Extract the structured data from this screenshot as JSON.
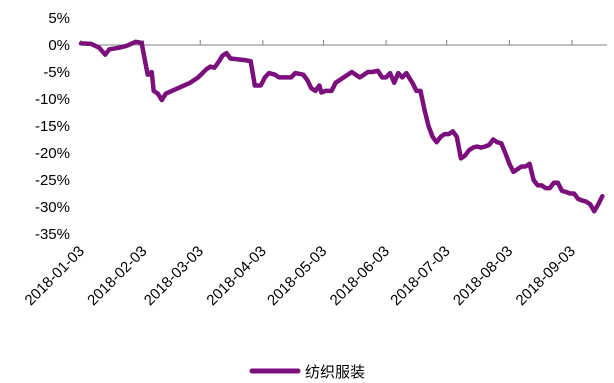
{
  "chart_data": {
    "type": "line",
    "title": "",
    "xlabel": "",
    "ylabel": "",
    "ylim": [
      -35,
      5
    ],
    "y_ticks": [
      "5%",
      "0%",
      "-5%",
      "-10%",
      "-15%",
      "-20%",
      "-25%",
      "-30%",
      "-35%"
    ],
    "x_ticks": [
      "2018-01-03",
      "2018-02-03",
      "2018-03-03",
      "2018-04-03",
      "2018-05-03",
      "2018-06-03",
      "2018-07-03",
      "2018-08-03",
      "2018-09-03"
    ],
    "grid": false,
    "legend_position": "bottom-center",
    "series": [
      {
        "name": "纺织服装",
        "color": "#7B0F7B",
        "points": [
          [
            "2018-01-03",
            0.3
          ],
          [
            "2018-01-08",
            0.2
          ],
          [
            "2018-01-12",
            -0.5
          ],
          [
            "2018-01-15",
            -1.8
          ],
          [
            "2018-01-17",
            -0.8
          ],
          [
            "2018-01-22",
            -0.5
          ],
          [
            "2018-01-26",
            -0.1
          ],
          [
            "2018-01-30",
            0.6
          ],
          [
            "2018-02-02",
            0.4
          ],
          [
            "2018-02-05",
            -5.5
          ],
          [
            "2018-02-07",
            -5.0
          ],
          [
            "2018-02-08",
            -8.5
          ],
          [
            "2018-02-10",
            -9.0
          ],
          [
            "2018-02-12",
            -10.2
          ],
          [
            "2018-02-14",
            -9.0
          ],
          [
            "2018-02-20",
            -8.0
          ],
          [
            "2018-02-26",
            -7.0
          ],
          [
            "2018-03-02",
            -6.0
          ],
          [
            "2018-03-06",
            -4.5
          ],
          [
            "2018-03-08",
            -4.0
          ],
          [
            "2018-03-10",
            -4.2
          ],
          [
            "2018-03-12",
            -3.2
          ],
          [
            "2018-03-14",
            -2.0
          ],
          [
            "2018-03-16",
            -1.5
          ],
          [
            "2018-03-18",
            -2.5
          ],
          [
            "2018-03-25",
            -2.8
          ],
          [
            "2018-03-28",
            -3.0
          ],
          [
            "2018-03-30",
            -7.5
          ],
          [
            "2018-04-02",
            -7.5
          ],
          [
            "2018-04-04",
            -6.0
          ],
          [
            "2018-04-06",
            -5.2
          ],
          [
            "2018-04-09",
            -5.5
          ],
          [
            "2018-04-11",
            -6.0
          ],
          [
            "2018-04-17",
            -6.0
          ],
          [
            "2018-04-19",
            -5.2
          ],
          [
            "2018-04-23",
            -5.5
          ],
          [
            "2018-04-25",
            -6.5
          ],
          [
            "2018-04-27",
            -8.0
          ],
          [
            "2018-04-29",
            -8.5
          ],
          [
            "2018-05-01",
            -7.5
          ],
          [
            "2018-05-02",
            -8.8
          ],
          [
            "2018-05-04",
            -8.5
          ],
          [
            "2018-05-07",
            -8.5
          ],
          [
            "2018-05-09",
            -7.0
          ],
          [
            "2018-05-11",
            -6.5
          ],
          [
            "2018-05-13",
            -6.0
          ],
          [
            "2018-05-15",
            -5.5
          ],
          [
            "2018-05-17",
            -5.0
          ],
          [
            "2018-05-19",
            -5.5
          ],
          [
            "2018-05-21",
            -6.0
          ],
          [
            "2018-05-23",
            -5.5
          ],
          [
            "2018-05-25",
            -5.0
          ],
          [
            "2018-05-27",
            -5.0
          ],
          [
            "2018-05-30",
            -4.8
          ],
          [
            "2018-06-01",
            -6.0
          ],
          [
            "2018-06-03",
            -6.0
          ],
          [
            "2018-06-05",
            -5.2
          ],
          [
            "2018-06-07",
            -7.0
          ],
          [
            "2018-06-09",
            -5.2
          ],
          [
            "2018-06-11",
            -6.0
          ],
          [
            "2018-06-13",
            -5.2
          ],
          [
            "2018-06-16",
            -7.0
          ],
          [
            "2018-06-18",
            -8.5
          ],
          [
            "2018-06-20",
            -8.5
          ],
          [
            "2018-06-22",
            -12.0
          ],
          [
            "2018-06-24",
            -15.0
          ],
          [
            "2018-06-26",
            -17.0
          ],
          [
            "2018-06-28",
            -18.0
          ],
          [
            "2018-06-30",
            -17.0
          ],
          [
            "2018-07-02",
            -16.5
          ],
          [
            "2018-07-04",
            -16.5
          ],
          [
            "2018-07-06",
            -16.0
          ],
          [
            "2018-07-08",
            -17.0
          ],
          [
            "2018-07-10",
            -21.0
          ],
          [
            "2018-07-12",
            -20.5
          ],
          [
            "2018-07-14",
            -19.5
          ],
          [
            "2018-07-16",
            -19.0
          ],
          [
            "2018-07-18",
            -18.8
          ],
          [
            "2018-07-20",
            -19.0
          ],
          [
            "2018-07-22",
            -18.8
          ],
          [
            "2018-07-24",
            -18.5
          ],
          [
            "2018-07-26",
            -17.5
          ],
          [
            "2018-07-28",
            -18.0
          ],
          [
            "2018-07-30",
            -18.2
          ],
          [
            "2018-08-01",
            -20.0
          ],
          [
            "2018-08-03",
            -22.0
          ],
          [
            "2018-08-05",
            -23.5
          ],
          [
            "2018-08-07",
            -23.0
          ],
          [
            "2018-08-09",
            -22.5
          ],
          [
            "2018-08-11",
            -22.5
          ],
          [
            "2018-08-13",
            -22.0
          ],
          [
            "2018-08-15",
            -25.0
          ],
          [
            "2018-08-17",
            -26.0
          ],
          [
            "2018-08-19",
            -26.0
          ],
          [
            "2018-08-21",
            -26.5
          ],
          [
            "2018-08-23",
            -26.5
          ],
          [
            "2018-08-25",
            -25.5
          ],
          [
            "2018-08-27",
            -25.5
          ],
          [
            "2018-08-29",
            -27.0
          ],
          [
            "2018-08-31",
            -27.2
          ],
          [
            "2018-09-02",
            -27.5
          ],
          [
            "2018-09-04",
            -27.5
          ],
          [
            "2018-09-06",
            -28.5
          ],
          [
            "2018-09-08",
            -28.8
          ],
          [
            "2018-09-10",
            -29.0
          ],
          [
            "2018-09-12",
            -29.5
          ],
          [
            "2018-09-14",
            -30.8
          ],
          [
            "2018-09-16",
            -29.5
          ],
          [
            "2018-09-18",
            -28.0
          ]
        ]
      }
    ]
  }
}
